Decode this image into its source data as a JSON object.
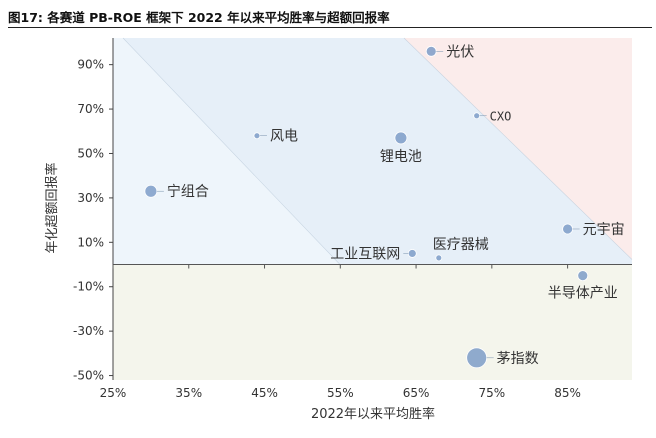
{
  "figure": {
    "title": "图17: 各赛道 PB-ROE 框架下 2022 年以来平均胜率与超额回报率"
  },
  "chart_data": {
    "type": "scatter",
    "xlabel": "2022年以来平均胜率",
    "ylabel": "年化超额回报率",
    "xlim": [
      0.25,
      0.935
    ],
    "ylim": [
      -0.52,
      1.02
    ],
    "x_ticks": [
      0.25,
      0.35,
      0.45,
      0.55,
      0.65,
      0.75,
      0.85
    ],
    "x_tick_labels": [
      "25%",
      "35%",
      "45%",
      "55%",
      "65%",
      "75%",
      "85%"
    ],
    "y_ticks": [
      0.9,
      0.7,
      0.5,
      0.3,
      0.1,
      -0.1,
      -0.3,
      -0.5
    ],
    "y_tick_labels": [
      "90%",
      "70%",
      "50%",
      "30%",
      "10%",
      "-10%",
      "-30%",
      "-50%"
    ],
    "grid": false,
    "zones": {
      "upper_left_color": "#eef5fb",
      "middle_band_color": "#e6eff8",
      "upper_right_color": "#fbeceb",
      "below_zero_color": "#f4f5ec",
      "separator_color": "#b8c8d8"
    },
    "point_color": "#7d9cc8",
    "point_opacity": 0.85,
    "points": [
      {
        "name": "光伏",
        "x": 0.67,
        "y": 0.96,
        "size": 5,
        "label_pos": "right"
      },
      {
        "name": "CXO",
        "x": 0.73,
        "y": 0.67,
        "size": 3,
        "label_pos": "right"
      },
      {
        "name": "风电",
        "x": 0.44,
        "y": 0.58,
        "size": 3,
        "label_pos": "right"
      },
      {
        "name": "锂电池",
        "x": 0.63,
        "y": 0.57,
        "size": 6,
        "label_pos": "below"
      },
      {
        "name": "宁组合",
        "x": 0.3,
        "y": 0.33,
        "size": 6,
        "label_pos": "right"
      },
      {
        "name": "元宇宙",
        "x": 0.85,
        "y": 0.16,
        "size": 5,
        "label_pos": "right"
      },
      {
        "name": "工业互联网",
        "x": 0.645,
        "y": 0.05,
        "size": 4,
        "label_pos": "left"
      },
      {
        "name": "医疗器械",
        "x": 0.68,
        "y": 0.03,
        "size": 3,
        "label_pos": "above-right"
      },
      {
        "name": "半导体产业",
        "x": 0.87,
        "y": -0.05,
        "size": 5,
        "label_pos": "below"
      },
      {
        "name": "茅指数",
        "x": 0.73,
        "y": -0.42,
        "size": 10,
        "label_pos": "right"
      }
    ]
  }
}
